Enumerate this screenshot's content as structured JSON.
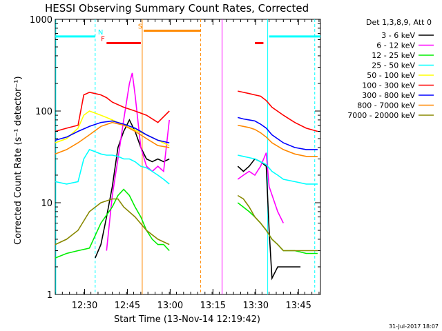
{
  "chart_data": {
    "type": "line",
    "title": "HESSI Observing Summary Count Rates, Corrected",
    "xlabel": "Start Time (13-Nov-14 12:19:42)",
    "ylabel": "Corrected Count Rate (s⁻¹ detector⁻¹)",
    "yscale": "log",
    "ylim": [
      1,
      1000
    ],
    "xlim_minutes": [
      0,
      93
    ],
    "x_ticks": [
      {
        "label": "12:30",
        "minute": 10.3
      },
      {
        "label": "12:45",
        "minute": 25.3
      },
      {
        "label": "13:00",
        "minute": 40.3
      },
      {
        "label": "13:15",
        "minute": 55.3
      },
      {
        "label": "13:30",
        "minute": 70.3
      },
      {
        "label": "13:45",
        "minute": 85.3
      }
    ],
    "y_ticks": [
      {
        "label": "1",
        "value": 1
      },
      {
        "label": "10",
        "value": 10
      },
      {
        "label": "100",
        "value": 100
      },
      {
        "label": "1000",
        "value": 1000
      }
    ],
    "legend_title": "Det 1,3,8,9, Att 0",
    "legend_placement": "right",
    "series": [
      {
        "name": "3 - 6 keV",
        "color": "#000000",
        "segments": [
          [
            [
              14,
              2.5
            ],
            [
              16,
              3.5
            ],
            [
              18,
              7
            ],
            [
              20,
              15
            ],
            [
              22,
              40
            ],
            [
              24,
              60
            ],
            [
              26,
              80
            ],
            [
              28,
              60
            ],
            [
              30,
              40
            ],
            [
              32,
              30
            ],
            [
              34,
              28
            ],
            [
              36,
              30
            ],
            [
              38,
              28
            ],
            [
              40,
              30
            ]
          ],
          [
            [
              64,
              25
            ],
            [
              66,
              22
            ],
            [
              68,
              25
            ],
            [
              70,
              30
            ],
            [
              72,
              28
            ],
            [
              74,
              25
            ],
            [
              75,
              5
            ],
            [
              76,
              1.5
            ],
            [
              78,
              2
            ],
            [
              80,
              2
            ],
            [
              82,
              2
            ],
            [
              84,
              2
            ],
            [
              86,
              2
            ]
          ]
        ]
      },
      {
        "name": "6 - 12 keV",
        "color": "#ff00ff",
        "segments": [
          [
            [
              18,
              3
            ],
            [
              20,
              12
            ],
            [
              22,
              30
            ],
            [
              24,
              80
            ],
            [
              26,
              200
            ],
            [
              27,
              260
            ],
            [
              28,
              150
            ],
            [
              30,
              40
            ],
            [
              32,
              25
            ],
            [
              34,
              22
            ],
            [
              36,
              25
            ],
            [
              38,
              22
            ],
            [
              40,
              80
            ]
          ],
          [
            [
              64,
              18
            ],
            [
              66,
              20
            ],
            [
              68,
              22
            ],
            [
              70,
              20
            ],
            [
              72,
              25
            ],
            [
              74,
              35
            ],
            [
              75,
              15
            ],
            [
              78,
              8
            ],
            [
              80,
              6
            ]
          ]
        ]
      },
      {
        "name": "12 - 25 keV",
        "color": "#00ee00",
        "segments": [
          [
            [
              0,
              2.5
            ],
            [
              4,
              2.8
            ],
            [
              8,
              3
            ],
            [
              12,
              3.2
            ],
            [
              16,
              6
            ],
            [
              20,
              9
            ],
            [
              22,
              12
            ],
            [
              24,
              14
            ],
            [
              26,
              12
            ],
            [
              28,
              9
            ],
            [
              30,
              7
            ],
            [
              32,
              5
            ],
            [
              34,
              4
            ],
            [
              36,
              3.5
            ],
            [
              38,
              3.5
            ],
            [
              40,
              3
            ]
          ],
          [
            [
              64,
              10
            ],
            [
              68,
              8
            ],
            [
              70,
              7
            ],
            [
              72,
              6
            ],
            [
              74,
              5
            ],
            [
              76,
              4
            ],
            [
              78,
              3.5
            ],
            [
              80,
              3
            ],
            [
              84,
              3
            ],
            [
              88,
              2.8
            ],
            [
              92,
              2.8
            ]
          ]
        ]
      },
      {
        "name": "25 - 50 keV",
        "color": "#00ffff",
        "segments": [
          [
            [
              0,
              17
            ],
            [
              4,
              16
            ],
            [
              8,
              17
            ],
            [
              10,
              30
            ],
            [
              12,
              38
            ],
            [
              14,
              36
            ],
            [
              16,
              34
            ],
            [
              18,
              33
            ],
            [
              20,
              33
            ],
            [
              22,
              32
            ],
            [
              24,
              30
            ],
            [
              26,
              30
            ],
            [
              28,
              28
            ],
            [
              30,
              25
            ],
            [
              32,
              24
            ],
            [
              34,
              22
            ],
            [
              36,
              20
            ],
            [
              38,
              18
            ],
            [
              40,
              16
            ]
          ],
          [
            [
              64,
              33
            ],
            [
              66,
              32
            ],
            [
              68,
              31
            ],
            [
              70,
              30
            ],
            [
              72,
              28
            ],
            [
              74,
              26
            ],
            [
              76,
              22
            ],
            [
              78,
              20
            ],
            [
              80,
              18
            ],
            [
              84,
              17
            ],
            [
              88,
              16
            ],
            [
              92,
              16
            ]
          ]
        ]
      },
      {
        "name": "50 - 100 keV",
        "color": "#ffff00",
        "segments": [
          [
            [
              0,
              45
            ],
            [
              4,
              50
            ],
            [
              8,
              65
            ],
            [
              10,
              90
            ],
            [
              12,
              100
            ],
            [
              14,
              95
            ],
            [
              16,
              90
            ],
            [
              18,
              85
            ],
            [
              20,
              80
            ],
            [
              24,
              70
            ],
            [
              28,
              62
            ],
            [
              32,
              55
            ],
            [
              36,
              48
            ],
            [
              40,
              42
            ]
          ]
        ]
      },
      {
        "name": "100 - 300 keV",
        "color": "#ff0000",
        "segments": [
          [
            [
              0,
              60
            ],
            [
              4,
              65
            ],
            [
              8,
              70
            ],
            [
              10,
              150
            ],
            [
              12,
              160
            ],
            [
              14,
              155
            ],
            [
              16,
              150
            ],
            [
              18,
              140
            ],
            [
              20,
              125
            ],
            [
              24,
              110
            ],
            [
              28,
              100
            ],
            [
              32,
              90
            ],
            [
              36,
              75
            ],
            [
              40,
              100
            ]
          ],
          [
            [
              64,
              165
            ],
            [
              66,
              160
            ],
            [
              68,
              155
            ],
            [
              70,
              150
            ],
            [
              72,
              145
            ],
            [
              74,
              130
            ],
            [
              76,
              110
            ],
            [
              80,
              90
            ],
            [
              84,
              75
            ],
            [
              88,
              65
            ],
            [
              92,
              60
            ]
          ]
        ]
      },
      {
        "name": "300 - 800 keV",
        "color": "#0000ff",
        "segments": [
          [
            [
              0,
              48
            ],
            [
              4,
              52
            ],
            [
              8,
              60
            ],
            [
              12,
              68
            ],
            [
              16,
              75
            ],
            [
              20,
              78
            ],
            [
              24,
              72
            ],
            [
              28,
              65
            ],
            [
              32,
              55
            ],
            [
              36,
              48
            ],
            [
              40,
              45
            ]
          ],
          [
            [
              64,
              85
            ],
            [
              66,
              82
            ],
            [
              68,
              80
            ],
            [
              70,
              78
            ],
            [
              72,
              72
            ],
            [
              74,
              65
            ],
            [
              76,
              55
            ],
            [
              80,
              45
            ],
            [
              84,
              40
            ],
            [
              88,
              38
            ],
            [
              92,
              38
            ]
          ]
        ]
      },
      {
        "name": "800 - 7000 keV",
        "color": "#ff8800",
        "segments": [
          [
            [
              0,
              34
            ],
            [
              4,
              38
            ],
            [
              8,
              45
            ],
            [
              12,
              55
            ],
            [
              16,
              68
            ],
            [
              20,
              75
            ],
            [
              24,
              70
            ],
            [
              28,
              60
            ],
            [
              32,
              50
            ],
            [
              36,
              42
            ],
            [
              40,
              40
            ]
          ],
          [
            [
              64,
              70
            ],
            [
              66,
              68
            ],
            [
              68,
              66
            ],
            [
              70,
              63
            ],
            [
              72,
              58
            ],
            [
              74,
              52
            ],
            [
              76,
              45
            ],
            [
              80,
              38
            ],
            [
              84,
              34
            ],
            [
              88,
              32
            ],
            [
              92,
              32
            ]
          ]
        ]
      },
      {
        "name": "7000 - 20000 keV",
        "color": "#888800",
        "segments": [
          [
            [
              0,
              3.5
            ],
            [
              4,
              4
            ],
            [
              8,
              5
            ],
            [
              12,
              8
            ],
            [
              16,
              10
            ],
            [
              20,
              11
            ],
            [
              22,
              11
            ],
            [
              24,
              9
            ],
            [
              28,
              7
            ],
            [
              32,
              5
            ],
            [
              36,
              4
            ],
            [
              40,
              3.5
            ]
          ],
          [
            [
              64,
              12
            ],
            [
              66,
              11
            ],
            [
              68,
              9
            ],
            [
              70,
              7
            ],
            [
              72,
              6
            ],
            [
              74,
              5
            ],
            [
              76,
              4
            ],
            [
              78,
              3.5
            ],
            [
              80,
              3
            ],
            [
              84,
              3
            ],
            [
              88,
              3
            ],
            [
              92,
              3
            ]
          ]
        ]
      }
    ],
    "flags": [
      {
        "label": "N",
        "color": "#00ffff",
        "value": 650,
        "start": 0,
        "end": 14,
        "label_at": 15
      },
      {
        "label": "F",
        "color": "#ff0000",
        "value": 550,
        "start": 18,
        "end": 30,
        "label_at": 16
      },
      {
        "label": "S",
        "color": "#ff8800",
        "value": 750,
        "start": 31,
        "end": 51,
        "label_at": 29
      },
      {
        "label": "",
        "color": "#ff0000",
        "value": 550,
        "start": 70,
        "end": 73,
        "label_at": null
      },
      {
        "label": "",
        "color": "#00ffff",
        "value": 650,
        "start": 75,
        "end": 93,
        "label_at": null
      }
    ],
    "vlines": [
      {
        "minute": 0.2,
        "color": "#00ffff",
        "style": "solid"
      },
      {
        "minute": 14.0,
        "color": "#00ffff",
        "style": "dashed"
      },
      {
        "minute": 30.5,
        "color": "#ff8800",
        "style": "solid"
      },
      {
        "minute": 51.0,
        "color": "#ff8800",
        "style": "dashed"
      },
      {
        "minute": 58.5,
        "color": "#ff00ff",
        "style": "solid"
      },
      {
        "minute": 74.5,
        "color": "#00ffff",
        "style": "solid"
      },
      {
        "minute": 91.0,
        "color": "#00ffff",
        "style": "dashed"
      }
    ],
    "footer_date": "31-Jul-2017 18:07"
  }
}
